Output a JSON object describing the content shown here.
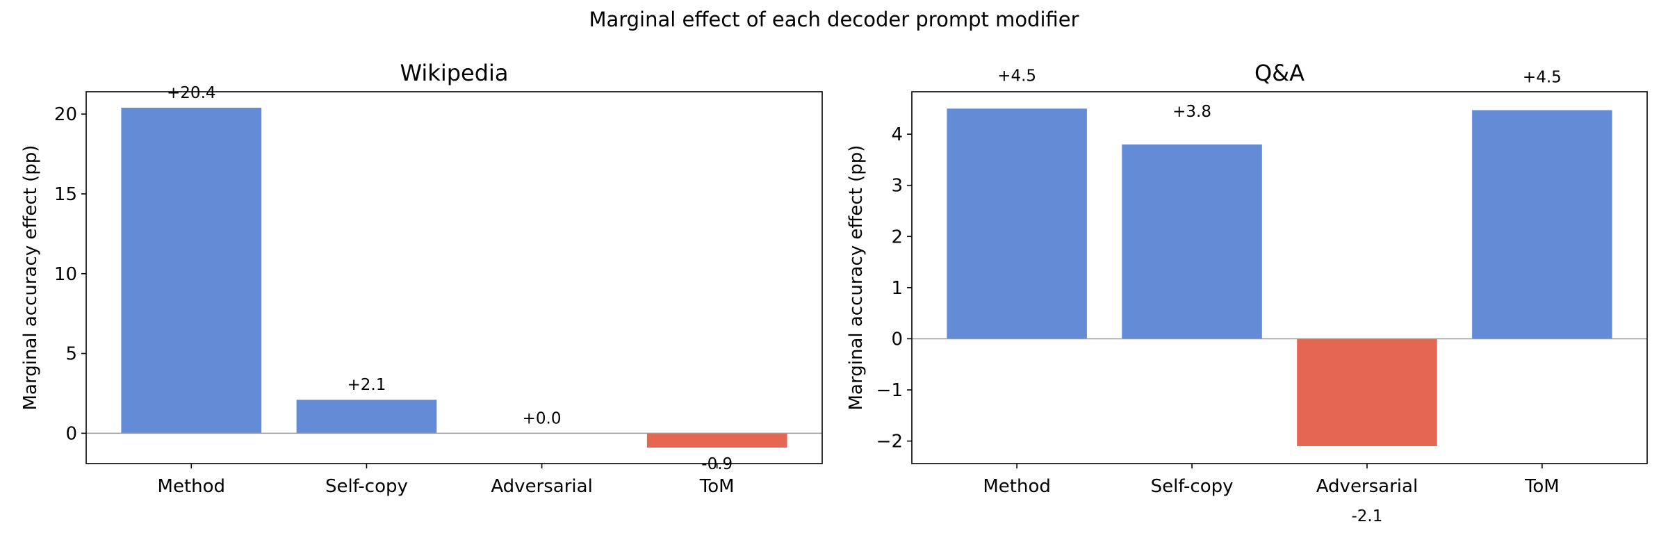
{
  "figure_title": "Marginal effect of each decoder prompt modifier",
  "colors": {
    "positive": "#648cd6",
    "negative": "#e56753",
    "zero_line": "#9a9a9a",
    "axis": "#000000"
  },
  "chart_data": [
    {
      "type": "bar",
      "title": "Wikipedia",
      "xlabel": "",
      "ylabel": "Marginal accuracy effect (pp)",
      "categories": [
        "Method",
        "Self-copy",
        "Adversarial",
        "ToM"
      ],
      "values": [
        20.4,
        2.1,
        0.0,
        -0.9
      ],
      "value_labels": [
        "+20.4",
        "+2.1",
        "+0.0",
        "-0.9"
      ],
      "ylim": [
        -1.9,
        21.4
      ],
      "yticks": [
        0,
        5,
        10,
        15,
        20
      ],
      "ytick_labels": [
        "0",
        "5",
        "10",
        "15",
        "20"
      ],
      "grid": false,
      "legend": null
    },
    {
      "type": "bar",
      "title": "Q&A",
      "xlabel": "",
      "ylabel": "Marginal accuracy effect (pp)",
      "categories": [
        "Method",
        "Self-copy",
        "Adversarial",
        "ToM"
      ],
      "values": [
        4.5,
        3.8,
        -2.1,
        4.47
      ],
      "value_labels": [
        "+4.5",
        "+3.8",
        "-2.1",
        "+4.5"
      ],
      "ylim": [
        -2.44,
        4.83
      ],
      "yticks": [
        -2,
        -1,
        0,
        1,
        2,
        3,
        4
      ],
      "ytick_labels": [
        "−2",
        "−1",
        "0",
        "1",
        "2",
        "3",
        "4"
      ],
      "grid": false,
      "legend": null
    }
  ]
}
